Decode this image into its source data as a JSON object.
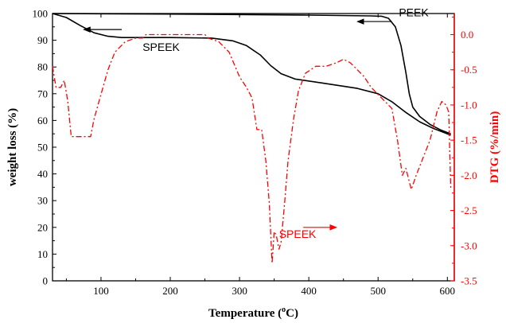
{
  "chart_data": {
    "type": "line",
    "title": "",
    "xlabel_main": "Temperature (",
    "xlabel_sup": "o",
    "xlabel_unit": "C)",
    "ylabel": "weight loss (%)",
    "ylabel_right": "DTG (%/min)",
    "xlim": [
      30,
      610
    ],
    "ylim": [
      0,
      100
    ],
    "ylim_right": [
      -3.5,
      0.3
    ],
    "x_ticks": [
      100,
      200,
      300,
      400,
      500,
      600
    ],
    "y_ticks": [
      0,
      10,
      20,
      30,
      40,
      50,
      60,
      70,
      80,
      90,
      100
    ],
    "y_right_ticks": [
      0.0,
      -0.5,
      -1.0,
      -1.5,
      -2.0,
      -2.5,
      -3.0,
      -3.5
    ],
    "x_tick_labels": [
      "100",
      "200",
      "300",
      "400",
      "500",
      "600"
    ],
    "y_tick_labels": [
      "0",
      "10",
      "20",
      "30",
      "40",
      "50",
      "60",
      "70",
      "80",
      "90",
      "100"
    ],
    "y_right_tick_labels": [
      "0.0",
      "-0.5",
      "-1.0",
      "-1.5",
      "-2.0",
      "-2.5",
      "-3.0",
      "-3.5"
    ],
    "colors": {
      "tg": "#000000",
      "dtg": "#ff0000",
      "right_axis": "#ff0000"
    },
    "series": [
      {
        "axis": "left",
        "style": "solid",
        "points": [
          [
            30,
            100
          ],
          [
            100,
            99.9
          ],
          [
            200,
            99.8
          ],
          [
            300,
            99.6
          ],
          [
            400,
            99.4
          ],
          [
            490,
            99.1
          ],
          [
            505,
            99.0
          ],
          [
            515,
            98.2
          ],
          [
            525,
            95.0
          ],
          [
            533,
            88.0
          ],
          [
            540,
            78.0
          ],
          [
            545,
            70.0
          ],
          [
            550,
            65.0
          ],
          [
            560,
            61.5
          ],
          [
            575,
            58.5
          ],
          [
            590,
            56.5
          ],
          [
            605,
            55.0
          ]
        ]
      },
      {
        "axis": "left",
        "style": "solid",
        "points": [
          [
            30,
            100
          ],
          [
            50,
            98.5
          ],
          [
            70,
            95.5
          ],
          [
            90,
            92.8
          ],
          [
            110,
            91.5
          ],
          [
            130,
            91.0
          ],
          [
            200,
            91.0
          ],
          [
            260,
            90.8
          ],
          [
            290,
            89.8
          ],
          [
            310,
            88.0
          ],
          [
            330,
            84.5
          ],
          [
            345,
            80.5
          ],
          [
            360,
            77.5
          ],
          [
            380,
            75.5
          ],
          [
            420,
            74.0
          ],
          [
            470,
            72.0
          ],
          [
            500,
            70.0
          ],
          [
            520,
            67.0
          ],
          [
            540,
            63.0
          ],
          [
            560,
            59.5
          ],
          [
            580,
            57.0
          ],
          [
            605,
            54.5
          ]
        ]
      },
      {
        "axis": "right",
        "style": "dashdot",
        "points": [
          [
            30,
            -0.45
          ],
          [
            35,
            -0.75
          ],
          [
            42,
            -0.75
          ],
          [
            47,
            -0.65
          ],
          [
            52,
            -0.95
          ],
          [
            57,
            -1.45
          ],
          [
            65,
            -1.45
          ],
          [
            85,
            -1.45
          ],
          [
            90,
            -1.2
          ],
          [
            100,
            -0.85
          ],
          [
            110,
            -0.5
          ],
          [
            120,
            -0.25
          ],
          [
            135,
            -0.1
          ],
          [
            150,
            -0.05
          ],
          [
            160,
            -0.05
          ],
          [
            165,
            0.0
          ],
          [
            200,
            0.0
          ],
          [
            250,
            0.0
          ],
          [
            255,
            -0.05
          ],
          [
            270,
            -0.1
          ],
          [
            285,
            -0.25
          ],
          [
            300,
            -0.6
          ],
          [
            310,
            -0.75
          ],
          [
            318,
            -0.9
          ],
          [
            325,
            -1.35
          ],
          [
            332,
            -1.35
          ],
          [
            338,
            -1.8
          ],
          [
            343,
            -2.4
          ],
          [
            347,
            -3.25
          ],
          [
            350,
            -2.8
          ],
          [
            353,
            -2.85
          ],
          [
            357,
            -3.05
          ],
          [
            360,
            -2.95
          ],
          [
            365,
            -2.4
          ],
          [
            370,
            -1.8
          ],
          [
            378,
            -1.2
          ],
          [
            385,
            -0.8
          ],
          [
            395,
            -0.55
          ],
          [
            410,
            -0.45
          ],
          [
            425,
            -0.45
          ],
          [
            440,
            -0.4
          ],
          [
            450,
            -0.35
          ],
          [
            460,
            -0.4
          ],
          [
            470,
            -0.5
          ],
          [
            480,
            -0.6
          ],
          [
            490,
            -0.75
          ],
          [
            500,
            -0.85
          ],
          [
            510,
            -0.95
          ],
          [
            520,
            -1.05
          ],
          [
            528,
            -1.5
          ],
          [
            535,
            -2.0
          ],
          [
            540,
            -1.9
          ],
          [
            548,
            -2.2
          ],
          [
            555,
            -2.0
          ],
          [
            565,
            -1.75
          ],
          [
            575,
            -1.5
          ],
          [
            585,
            -1.1
          ],
          [
            592,
            -0.95
          ],
          [
            598,
            -1.0
          ],
          [
            602,
            -1.1
          ],
          [
            605,
            -2.2
          ]
        ]
      }
    ],
    "annotations": [
      {
        "text": "PEEK",
        "x": 530,
        "y": 99
      },
      {
        "text": "SPEEK",
        "x": 160,
        "y": 86
      },
      {
        "text": "SPEEK",
        "x": 357,
        "y": 16
      }
    ],
    "arrows": [
      {
        "from": [
          520,
          97
        ],
        "to": [
          470,
          97
        ],
        "color": "black"
      },
      {
        "from": [
          130,
          94
        ],
        "to": [
          75,
          94
        ],
        "color": "black"
      },
      {
        "from": [
          392,
          20
        ],
        "to": [
          440,
          20
        ],
        "color": "red"
      }
    ],
    "grid": false
  }
}
